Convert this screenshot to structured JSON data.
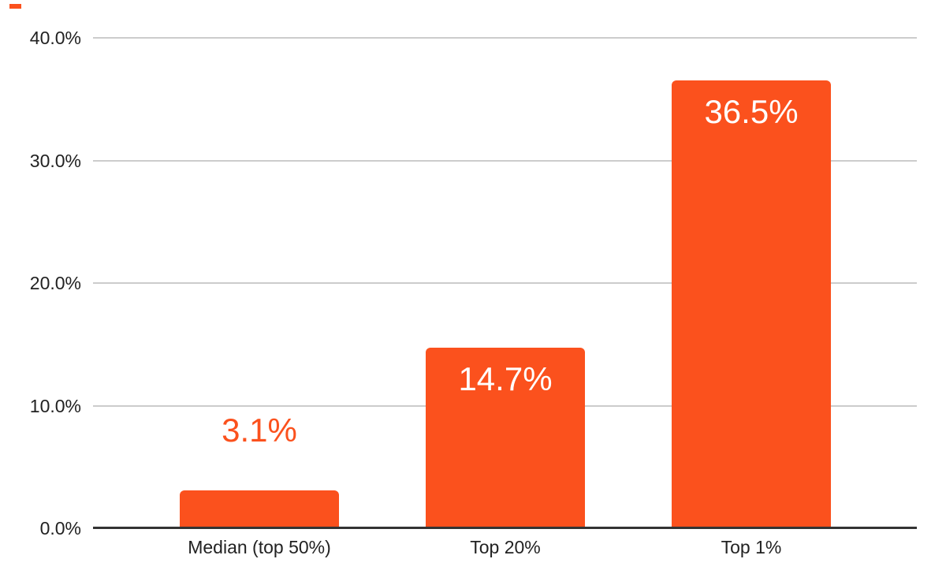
{
  "chart_data": {
    "type": "bar",
    "categories": [
      "Median (top 50%)",
      "Top 20%",
      "Top 1%"
    ],
    "values": [
      3.1,
      14.7,
      36.5
    ],
    "data_labels": [
      "3.1%",
      "14.7%",
      "36.5%"
    ],
    "title": "",
    "xlabel": "",
    "ylabel": "",
    "ylim": [
      0,
      40
    ],
    "yticks": [
      0,
      10,
      20,
      30,
      40
    ],
    "ytick_labels": [
      "0.0%",
      "10.0%",
      "20.0%",
      "30.0%",
      "40.0%"
    ],
    "grid": true,
    "legend_position": "none",
    "colors": {
      "bar": "#FB511D",
      "label_inside": "#FFFFFF",
      "label_outside": "#FB511D",
      "gridline": "#CCCCCC",
      "axis_line": "#333333",
      "tick_text": "#222222",
      "background": "#FFFFFF"
    }
  }
}
